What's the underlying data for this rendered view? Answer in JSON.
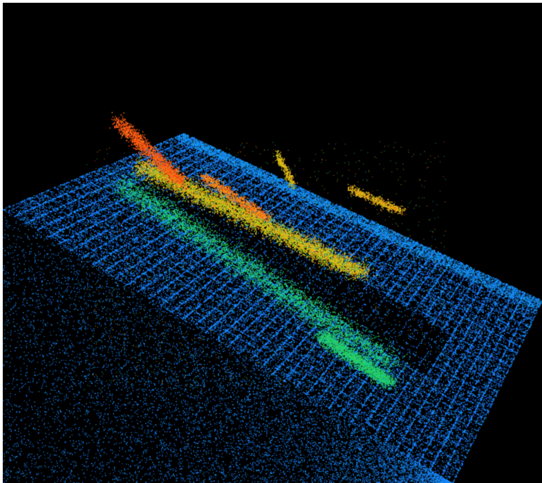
{
  "viewer": {
    "background_color": "#000000",
    "frame_color": "#ffffff"
  },
  "point_cloud": {
    "colormap": "jet",
    "colormap_stops": [
      "#1f3fff",
      "#1a7cff",
      "#19c7ff",
      "#1fd38a",
      "#36d12f",
      "#c8d21a",
      "#ffb11a",
      "#ff7a1a",
      "#ff3b12"
    ],
    "dominant_color": "#1f3fff",
    "view": "perspective"
  }
}
